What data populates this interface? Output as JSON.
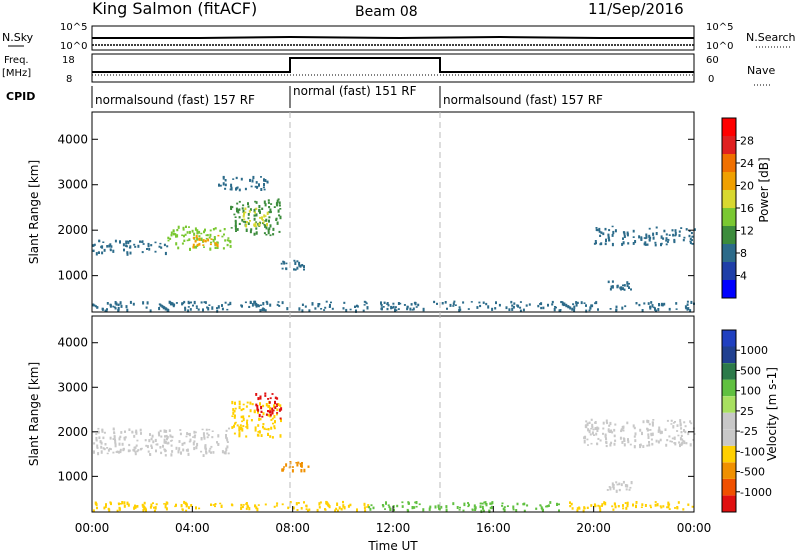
{
  "header": {
    "station": "King Salmon (fitACF)",
    "beam": "Beam 08",
    "date": "11/Sep/2016"
  },
  "top_panel": {
    "nsky_label": "N.Sky",
    "nsky_ticks": [
      "10^5",
      "10^0"
    ],
    "nsearch_label": "N.Search",
    "nsearch_ticks": [
      "10^5",
      "10^0"
    ],
    "freq_label": "Freq.",
    "freq_unit": "[MHz]",
    "freq_ticks": [
      "18",
      "8"
    ],
    "nave_label": "Nave",
    "nave_ticks": [
      "60",
      "0"
    ],
    "cpid_label": "CPID",
    "cpid_segments": [
      {
        "label": "normalsound (fast) 157 RF",
        "start_h": 0,
        "end_h": 8
      },
      {
        "label": "normal (fast) 151 RF",
        "start_h": 8,
        "end_h": 14
      },
      {
        "label": "normalsound (fast) 157 RF",
        "start_h": 14,
        "end_h": 24
      }
    ]
  },
  "x_axis": {
    "label": "Time UT",
    "ticks": [
      "00:00",
      "04:00",
      "08:00",
      "12:00",
      "16:00",
      "20:00",
      "00:00"
    ],
    "range_h": [
      0,
      24
    ]
  },
  "colors": {
    "power": [
      "#0000ff",
      "#1f3fa8",
      "#2c6b8a",
      "#3c8c3c",
      "#7ac832",
      "#d8d830",
      "#f0a000",
      "#f07000",
      "#e02020",
      "#ff0000"
    ],
    "velocity": [
      "#2040c0",
      "#204090",
      "#2c7a4a",
      "#60c040",
      "#a8e060",
      "#c8c8c8",
      "#c8c8c8",
      "#ffd000",
      "#f09000",
      "#f05000",
      "#e01010"
    ]
  },
  "chart_data": [
    {
      "type": "heatmap",
      "name": "power",
      "ylabel": "Slant Range [km]",
      "yticks": [
        "1000",
        "2000",
        "3000",
        "4000"
      ],
      "ylim": [
        200,
        4600
      ],
      "colorbar": {
        "label": "Power [dB]",
        "ticks": [
          "4",
          "8",
          "12",
          "16",
          "20",
          "24",
          "28"
        ],
        "range": [
          0,
          30
        ]
      },
      "regions": [
        {
          "t0": 0.0,
          "t1": 3.0,
          "r0": 1500,
          "r1": 1800,
          "level": 6
        },
        {
          "t0": 3.0,
          "t1": 5.5,
          "r0": 1600,
          "r1": 2100,
          "level": 12
        },
        {
          "t0": 4.0,
          "t1": 5.0,
          "r0": 1650,
          "r1": 1900,
          "level": 20
        },
        {
          "t0": 5.5,
          "t1": 7.5,
          "r0": 1900,
          "r1": 2700,
          "level": 10
        },
        {
          "t0": 6.0,
          "t1": 7.0,
          "r0": 2100,
          "r1": 2500,
          "level": 16
        },
        {
          "t0": 5.0,
          "t1": 7.0,
          "r0": 2900,
          "r1": 3200,
          "level": 6
        },
        {
          "t0": 7.5,
          "t1": 8.6,
          "r0": 1150,
          "r1": 1350,
          "level": 6
        },
        {
          "t0": 0.0,
          "t1": 24.0,
          "r0": 250,
          "r1": 450,
          "level": 8
        },
        {
          "t0": 20.0,
          "t1": 24.0,
          "r0": 1700,
          "r1": 2100,
          "level": 6
        },
        {
          "t0": 20.5,
          "t1": 21.5,
          "r0": 700,
          "r1": 900,
          "level": 6
        }
      ]
    },
    {
      "type": "heatmap",
      "name": "velocity",
      "ylabel": "Slant Range [km]",
      "yticks": [
        "1000",
        "2000",
        "3000",
        "4000"
      ],
      "ylim": [
        200,
        4600
      ],
      "colorbar": {
        "label": "Velocity [m s-1]",
        "ticks": [
          "1000",
          "500",
          "100",
          "25",
          "-25",
          "-100",
          "-500",
          "-1000"
        ]
      },
      "regions": [
        {
          "t0": 0.0,
          "t1": 5.5,
          "r0": 1500,
          "r1": 2100,
          "value": 0
        },
        {
          "t0": 5.5,
          "t1": 7.5,
          "r0": 1900,
          "r1": 2700,
          "value": -50
        },
        {
          "t0": 6.5,
          "t1": 7.5,
          "r0": 2300,
          "r1": 2900,
          "value": -700
        },
        {
          "t0": 7.5,
          "t1": 8.6,
          "r0": 1150,
          "r1": 1350,
          "value": -300
        },
        {
          "t0": 0.0,
          "t1": 11.0,
          "r0": 250,
          "r1": 450,
          "value": -80
        },
        {
          "t0": 11.0,
          "t1": 19.0,
          "r0": 250,
          "r1": 450,
          "value": 70
        },
        {
          "t0": 19.0,
          "t1": 24.0,
          "r0": 250,
          "r1": 450,
          "value": -80
        },
        {
          "t0": 19.5,
          "t1": 24.0,
          "r0": 1700,
          "r1": 2300,
          "value": -10
        },
        {
          "t0": 20.5,
          "t1": 21.5,
          "r0": 700,
          "r1": 900,
          "value": 0
        }
      ]
    }
  ]
}
